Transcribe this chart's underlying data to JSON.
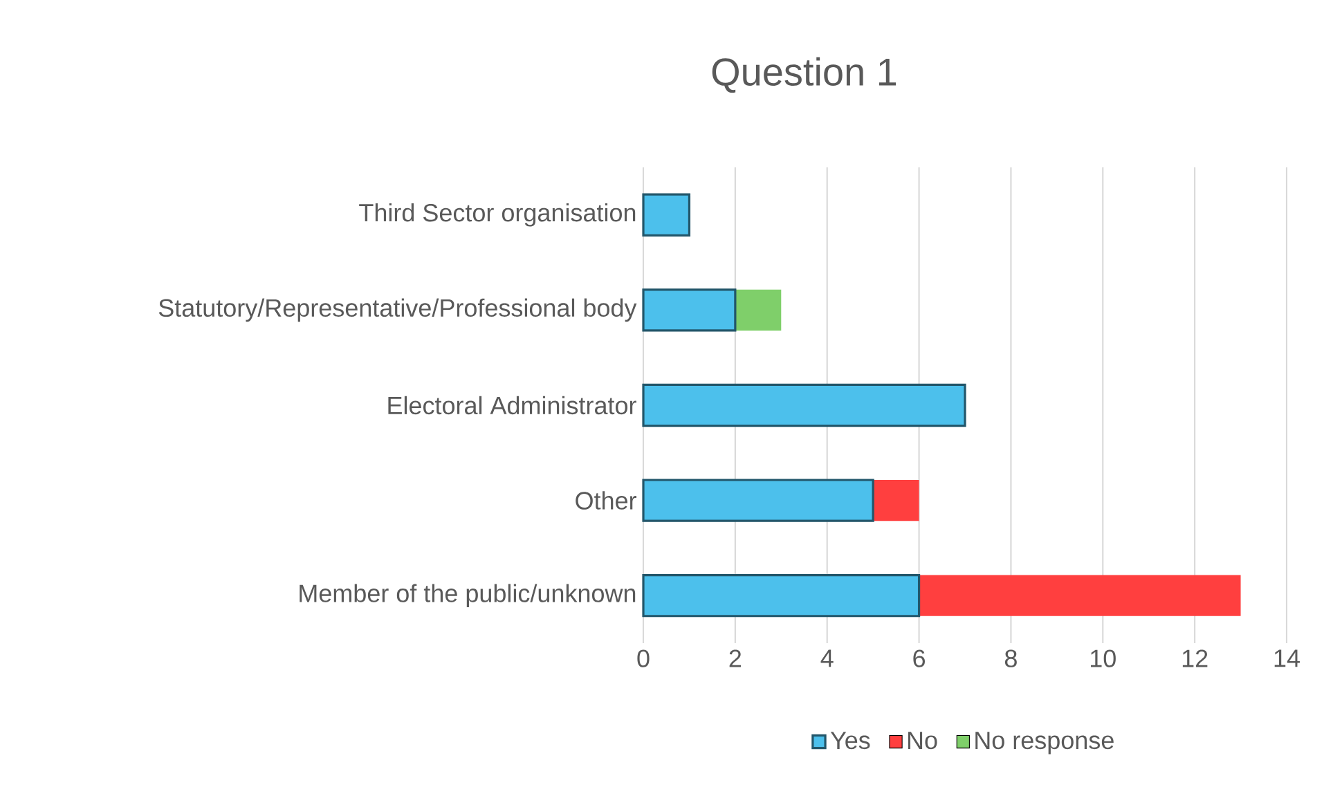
{
  "chart_data": {
    "type": "bar",
    "orientation": "horizontal",
    "stacked": true,
    "title": "Question 1",
    "categories": [
      "Third Sector organisation",
      "Statutory/Representative/Professional body",
      "Electoral Administrator",
      "Other",
      "Member of the public/unknown"
    ],
    "series": [
      {
        "name": "Yes",
        "color": "#4cc0ec",
        "values": [
          1,
          2,
          7,
          5,
          6
        ]
      },
      {
        "name": "No",
        "color": "#ff3f3f",
        "values": [
          null,
          null,
          null,
          1,
          7
        ]
      },
      {
        "name": "No response",
        "color": "#7fcf6a",
        "values": [
          null,
          1,
          null,
          null,
          null
        ]
      }
    ],
    "xlim": [
      0,
      14
    ],
    "xticks": [
      0,
      2,
      4,
      6,
      8,
      10,
      12,
      14
    ],
    "grid": "x",
    "legend": "bottom"
  }
}
